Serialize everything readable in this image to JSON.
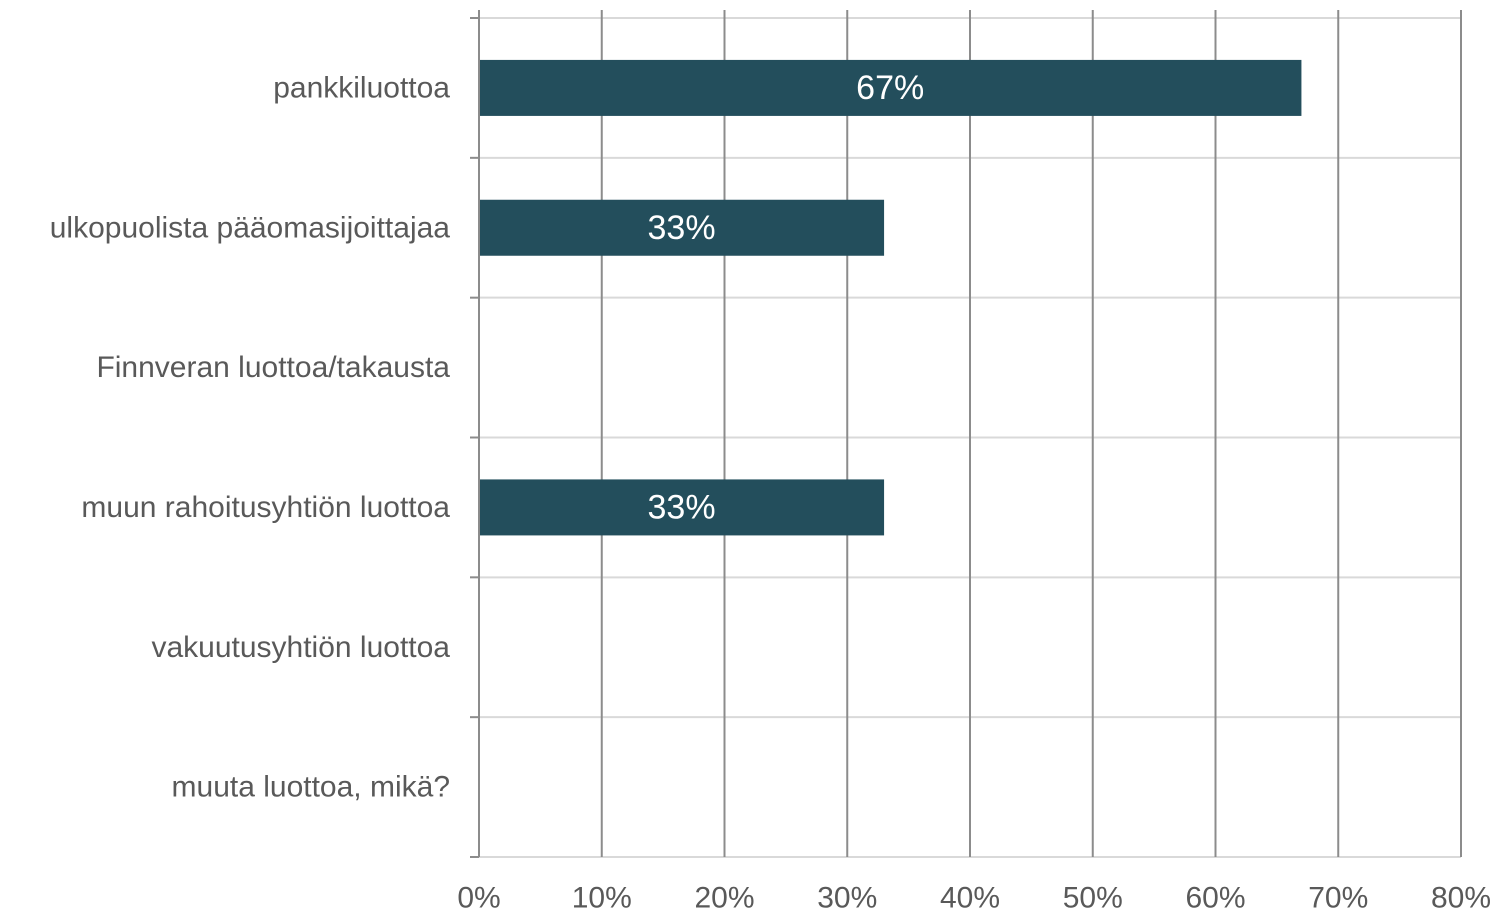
{
  "chart_data": {
    "type": "bar",
    "orientation": "horizontal",
    "categories": [
      "pankkiluottoa",
      "ulkopuolista pääomasijoittajaa",
      "Finnveran luottoa/takausta",
      "muun rahoitusyhtiön luottoa",
      "vakuutusyhtiön luottoa",
      "muuta luottoa, mikä?"
    ],
    "values": [
      67,
      33,
      0,
      33,
      0,
      0
    ],
    "data_labels": [
      "67%",
      "33%",
      "",
      "33%",
      "",
      ""
    ],
    "xlim": [
      0,
      80
    ],
    "x_ticks": [
      0,
      10,
      20,
      30,
      40,
      50,
      60,
      70,
      80
    ],
    "x_tick_labels": [
      "0%",
      "10%",
      "20%",
      "30%",
      "40%",
      "50%",
      "60%",
      "70%",
      "80%"
    ],
    "title": "",
    "xlabel": "",
    "ylabel": "",
    "grid": "vertical",
    "legend": "none",
    "colors": {
      "bar": "#234e5c",
      "grid": "#8c8c8c",
      "row_separator": "#d9d9d9",
      "text": "#595959",
      "data_label": "#ffffff"
    }
  }
}
